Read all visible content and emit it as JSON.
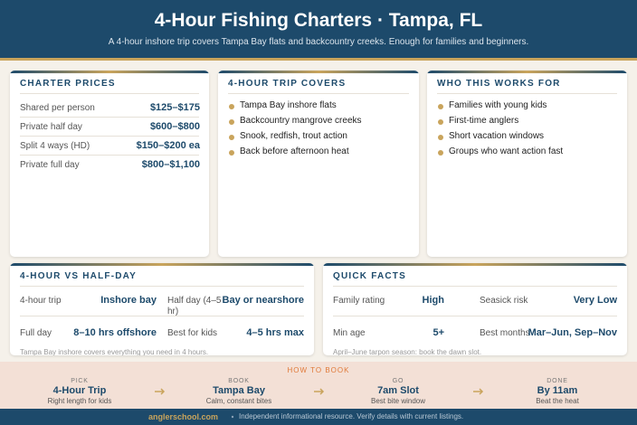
{
  "header": {
    "title": "4-Hour Fishing Charters · Tampa, FL",
    "subtitle": "A 4-hour inshore trip covers Tampa Bay flats and backcountry creeks. Enough for families and beginners."
  },
  "prices": {
    "title": "CHARTER PRICES",
    "rows": [
      [
        "Shared per person",
        "$125–$175"
      ],
      [
        "Private half day",
        "$600–$800"
      ],
      [
        "Split 4 ways (HD)",
        "$150–$200 ea"
      ],
      [
        "Private full day",
        "$800–$1,100"
      ]
    ]
  },
  "covers": {
    "title": "4-HOUR TRIP COVERS",
    "items": [
      "Tampa Bay inshore flats",
      "Backcountry mangrove creeks",
      "Snook, redfish, trout action",
      "Back before afternoon heat"
    ]
  },
  "who": {
    "title": "WHO THIS WORKS FOR",
    "items": [
      "Families with young kids",
      "First-time anglers",
      "Short vacation windows",
      "Groups who want action fast"
    ]
  },
  "compare": {
    "title": "4-HOUR VS HALF-DAY",
    "cells": [
      [
        "4-hour trip",
        "Inshore bay"
      ],
      [
        "Half day (4–5 hr)",
        "Bay or nearshore"
      ],
      [
        "Full day",
        "8–10 hrs offshore"
      ],
      [
        "Best for kids",
        "4–5 hrs max"
      ]
    ],
    "note": "Tampa Bay inshore covers everything you need in 4 hours."
  },
  "facts": {
    "title": "QUICK FACTS",
    "cells": [
      [
        "Family rating",
        "High"
      ],
      [
        "Seasick risk",
        "Very Low"
      ],
      [
        "Min age",
        "5+"
      ],
      [
        "Best months",
        "Mar–Jun, Sep–Nov"
      ]
    ],
    "note": "April–June tarpon season: book the dawn slot."
  },
  "how": {
    "title": "HOW TO BOOK",
    "steps": [
      {
        "label": "PICK",
        "title": "4-Hour Trip",
        "sub": "Right length for kids"
      },
      {
        "label": "BOOK",
        "title": "Tampa Bay",
        "sub": "Calm, constant bites"
      },
      {
        "label": "GO",
        "title": "7am Slot",
        "sub": "Best bite window"
      },
      {
        "label": "DONE",
        "title": "By 11am",
        "sub": "Beat the heat"
      }
    ]
  },
  "footer": {
    "site": "anglerschool.com",
    "text": "Independent informational resource. Verify details with current listings."
  }
}
